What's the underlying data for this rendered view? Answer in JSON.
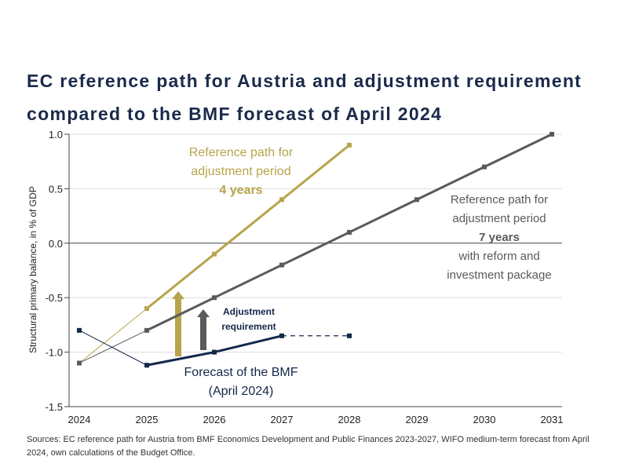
{
  "chart_data": {
    "type": "line",
    "title": "EC reference path for Austria and adjustment requirement compared to the BMF forecast of April 2024",
    "ylabel": "Structural primary balance, in % of GDP",
    "xlabel": "",
    "ylim": [
      -1.5,
      1.0
    ],
    "yticks": [
      "1.0",
      "0.5",
      "0.0",
      "-0.5",
      "-1.0",
      "-1.5"
    ],
    "yticks_values": [
      1.0,
      0.5,
      0.0,
      -0.5,
      -1.0,
      -1.5
    ],
    "categories": [
      "2024",
      "2025",
      "2026",
      "2027",
      "2028",
      "2029",
      "2030",
      "2031"
    ],
    "series": [
      {
        "name": "Reference path 4 years",
        "color": "#b8a44c",
        "values": [
          -1.1,
          -0.6,
          -0.1,
          0.4,
          0.9,
          null,
          null,
          null
        ]
      },
      {
        "name": "Reference path 7 years",
        "color": "#5a5a5a",
        "values": [
          -1.1,
          -0.8,
          -0.5,
          -0.2,
          0.1,
          0.4,
          0.7,
          1.0
        ]
      },
      {
        "name": "Forecast of the BMF (April 2024)",
        "color": "#14284a",
        "values": [
          -0.8,
          -1.12,
          -1.0,
          -0.85,
          -0.85,
          null,
          null,
          null
        ],
        "dashed_from": "2027"
      }
    ],
    "annotations": {
      "gold": [
        "Reference path for",
        "adjustment period",
        "4 years"
      ],
      "grey": [
        "Reference path for",
        "adjustment period",
        "7 years",
        "with reform and",
        "investment package"
      ],
      "adjust": [
        "Adjustment",
        "requirement"
      ],
      "bmf": [
        "Forecast of the BMF",
        "(April 2024)"
      ]
    },
    "source": "Sources: EC reference path for Austria from BMF Economics Development and Public Finances 2023-2027, WIFO medium-term forecast from April 2024, own calculations of the Budget Office."
  }
}
